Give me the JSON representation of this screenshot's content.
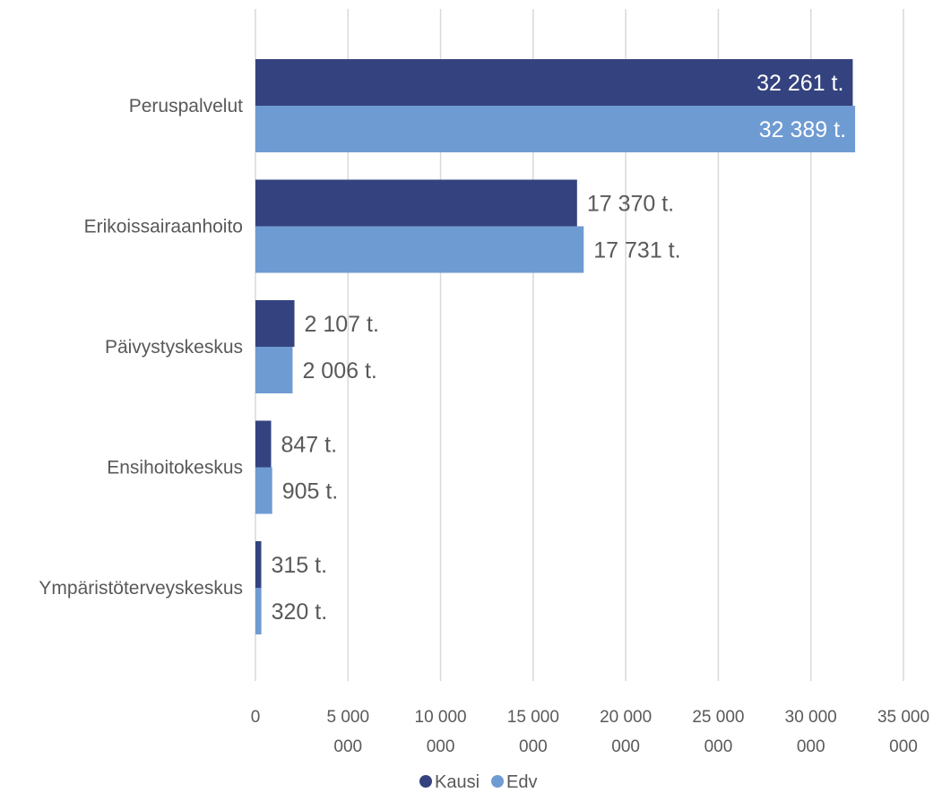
{
  "chart_data": {
    "type": "bar",
    "orientation": "horizontal",
    "categories": [
      "Peruspalvelut",
      "Erikoissairaanhoito",
      "Päivystyskeskus",
      "Ensihoitokeskus",
      "Ympäristöterveyskeskus"
    ],
    "series": [
      {
        "name": "Kausi",
        "color": "#34437f",
        "values": [
          32261000,
          17370000,
          2107000,
          847000,
          315000
        ],
        "labels": [
          "32 261 t.",
          "17 370 t.",
          "2 107 t.",
          "847 t.",
          "315 t."
        ]
      },
      {
        "name": "Edv",
        "color": "#6f9bd3",
        "values": [
          32389000,
          17731000,
          2006000,
          905000,
          320000
        ],
        "labels": [
          "32 389 t.",
          "17 731 t.",
          "2 006 t.",
          "905 t.",
          "320 t."
        ]
      }
    ],
    "xlim": [
      0,
      35000000
    ],
    "x_ticks": [
      {
        "value": 0,
        "line1": "0",
        "line2": ""
      },
      {
        "value": 5000000,
        "line1": "5 000",
        "line2": "000"
      },
      {
        "value": 10000000,
        "line1": "10 000",
        "line2": "000"
      },
      {
        "value": 15000000,
        "line1": "15 000",
        "line2": "000"
      },
      {
        "value": 20000000,
        "line1": "20 000",
        "line2": "000"
      },
      {
        "value": 25000000,
        "line1": "25 000",
        "line2": "000"
      },
      {
        "value": 30000000,
        "line1": "30 000",
        "line2": "000"
      },
      {
        "value": 35000000,
        "line1": "35 000",
        "line2": "000"
      }
    ],
    "grid": true,
    "legend": "bottom",
    "colors": {
      "gridline": "#d9d9d9",
      "text": "#595959",
      "label_inside": "#ffffff"
    }
  }
}
